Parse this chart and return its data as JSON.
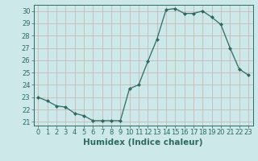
{
  "x": [
    0,
    1,
    2,
    3,
    4,
    5,
    6,
    7,
    8,
    9,
    10,
    11,
    12,
    13,
    14,
    15,
    16,
    17,
    18,
    19,
    20,
    21,
    22,
    23
  ],
  "y": [
    23.0,
    22.7,
    22.3,
    22.2,
    21.7,
    21.5,
    21.1,
    21.1,
    21.1,
    21.1,
    23.7,
    24.0,
    25.9,
    27.7,
    30.1,
    30.2,
    29.8,
    29.8,
    30.0,
    29.5,
    28.9,
    27.0,
    25.3,
    24.8
  ],
  "line_color": "#2e6b5e",
  "marker": "D",
  "marker_size": 2.0,
  "bg_color": "#cce8e8",
  "grid_color": "#c8b8b8",
  "tick_color": "#2e6b5e",
  "xlabel": "Humidex (Indice chaleur)",
  "xlim": [
    -0.5,
    23.5
  ],
  "ylim": [
    20.7,
    30.5
  ],
  "yticks": [
    21,
    22,
    23,
    24,
    25,
    26,
    27,
    28,
    29,
    30
  ],
  "xticks": [
    0,
    1,
    2,
    3,
    4,
    5,
    6,
    7,
    8,
    9,
    10,
    11,
    12,
    13,
    14,
    15,
    16,
    17,
    18,
    19,
    20,
    21,
    22,
    23
  ],
  "tick_font_size": 6.0,
  "label_font_size": 7.5
}
